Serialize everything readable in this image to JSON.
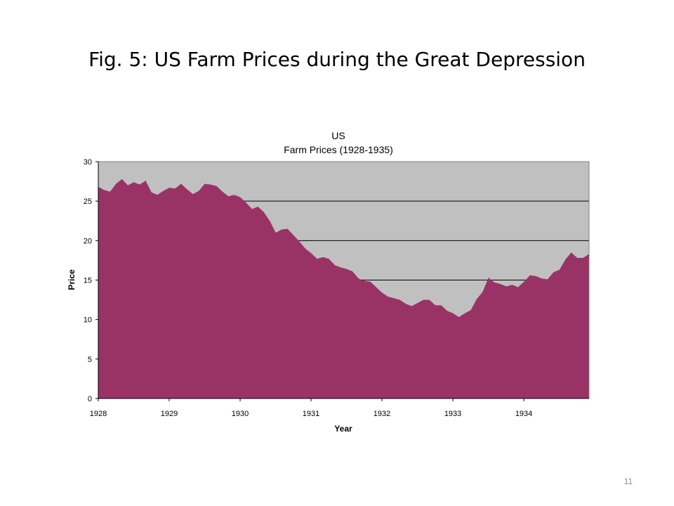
{
  "slide": {
    "title": "Fig. 5: US Farm Prices during the Great Depression",
    "page_number": "11"
  },
  "colors": {
    "plot_background": "#c0c0c0",
    "area_fill": "#993366",
    "gridline": "#000000"
  },
  "chart_data": {
    "type": "area",
    "title": "US",
    "subtitle": "Farm Prices (1928-1935)",
    "xlabel": "Year",
    "ylabel": "Price",
    "ylim": [
      0,
      30
    ],
    "yticks": [
      0,
      5,
      10,
      15,
      20,
      25,
      30
    ],
    "xlim": [
      1928,
      1934.92
    ],
    "xticks": [
      "1928",
      "1929",
      "1930",
      "1931",
      "1932",
      "1933",
      "1934"
    ],
    "grid": "horizontal",
    "legend": "none",
    "x_unit": "year (monthly observations)",
    "series": [
      {
        "values": [
          26.8,
          26.4,
          26.2,
          27.2,
          27.8,
          27.0,
          27.4,
          27.1,
          27.6,
          26.1,
          25.8,
          26.3,
          26.7,
          26.6,
          27.2,
          26.5,
          25.9,
          26.3,
          27.2,
          27.1,
          26.9,
          26.2,
          25.6,
          25.8,
          25.5,
          24.8,
          24.0,
          24.3,
          23.6,
          22.5,
          21.0,
          21.4,
          21.5,
          20.7,
          19.9,
          19.0,
          18.4,
          17.7,
          17.9,
          17.7,
          16.9,
          16.6,
          16.4,
          16.1,
          15.2,
          14.9,
          14.8,
          14.1,
          13.4,
          12.9,
          12.7,
          12.5,
          12.0,
          11.7,
          12.1,
          12.5,
          12.5,
          11.8,
          11.8,
          11.1,
          10.8,
          10.3,
          10.8,
          11.2,
          12.6,
          13.5,
          15.3,
          14.7,
          14.5,
          14.2,
          14.4,
          14.1,
          14.8,
          15.6,
          15.5,
          15.2,
          15.1,
          16.0,
          16.3,
          17.6,
          18.5,
          17.8,
          17.8,
          18.3
        ]
      }
    ]
  }
}
